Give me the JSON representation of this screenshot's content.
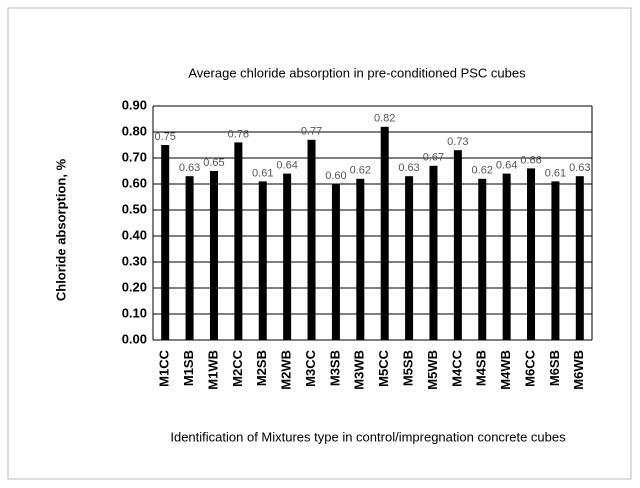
{
  "chart_data": {
    "type": "bar",
    "title": "Average chloride absorption in pre-conditioned PSC cubes",
    "x_label": "Identification of Mixtures type in control/impregnation concrete cubes",
    "y_label": "Chloride absorption, %",
    "categories": [
      "M1CC",
      "M1SB",
      "M1WB",
      "M2CC",
      "M2SB",
      "M2WB",
      "M3CC",
      "M3SB",
      "M3WB",
      "M5CC",
      "M5SB",
      "M5WB",
      "M4CC",
      "M4SB",
      "M4WB",
      "M6CC",
      "M6SB",
      "M6WB"
    ],
    "values": [
      0.75,
      0.63,
      0.65,
      0.76,
      0.61,
      0.64,
      0.77,
      0.6,
      0.62,
      0.82,
      0.63,
      0.67,
      0.73,
      0.62,
      0.64,
      0.66,
      0.61,
      0.63
    ],
    "value_labels": [
      "0.75",
      "0.63",
      "0.65",
      "0.76",
      "0.61",
      "0.64",
      "0.77",
      "0.60",
      "0.62",
      "0.82",
      "0.63",
      "0.67",
      "0.73",
      "0.62",
      "0.64",
      "0.66",
      "0.61",
      "0.63"
    ],
    "color": "#000000",
    "ylim": [
      0,
      0.9
    ],
    "yticks": [
      {
        "value": 0,
        "label": "0.00"
      },
      {
        "value": 0.1,
        "label": "0.10"
      },
      {
        "value": 0.2,
        "label": "0.20"
      },
      {
        "value": 0.3,
        "label": "0.30"
      },
      {
        "value": 0.4,
        "label": "0.40"
      },
      {
        "value": 0.5,
        "label": "0.50"
      },
      {
        "value": 0.6,
        "label": "0.60"
      },
      {
        "value": 0.7,
        "label": "0.70"
      },
      {
        "value": 0.8,
        "label": "0.80"
      },
      {
        "value": 0.9,
        "label": "0.90"
      }
    ],
    "grid": true
  }
}
